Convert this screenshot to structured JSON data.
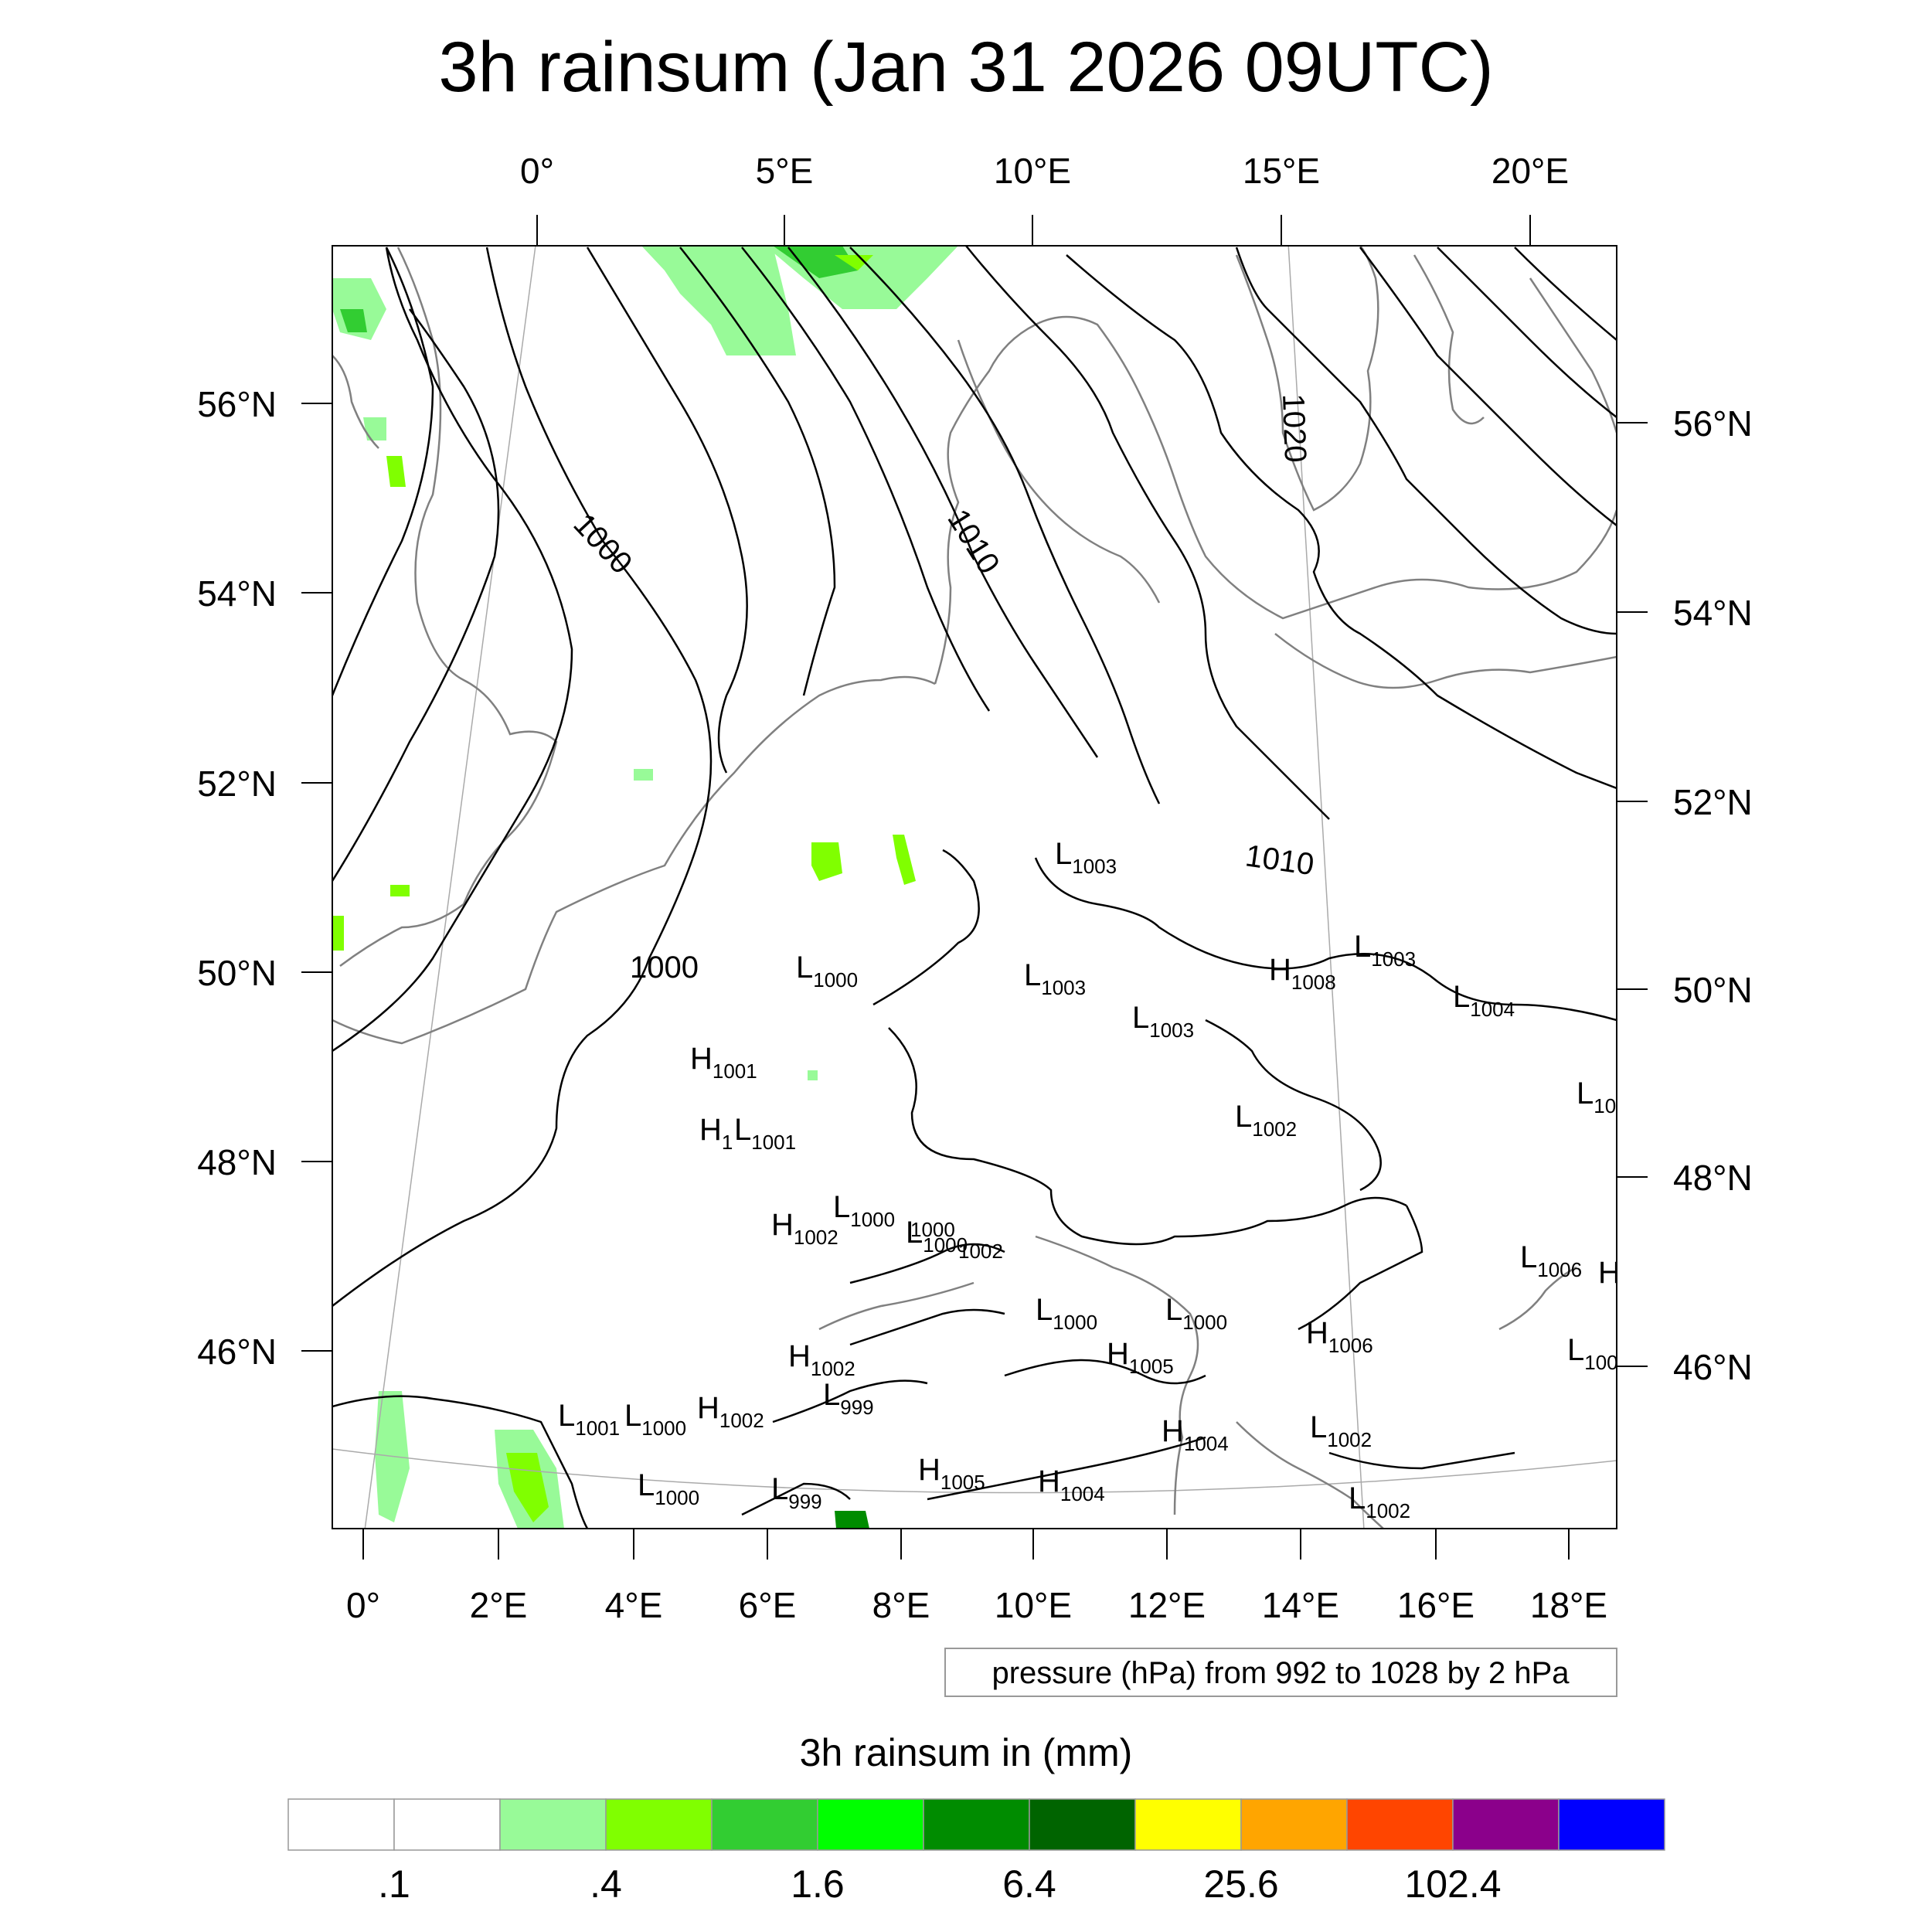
{
  "title": "3h rainsum (Jan 31 2026 09UTC)",
  "top_lon_labels": [
    "0°",
    "5°E",
    "10°E",
    "15°E",
    "20°E"
  ],
  "bottom_lon_labels": [
    "0°",
    "2°E",
    "4°E",
    "6°E",
    "8°E",
    "10°E",
    "12°E",
    "14°E",
    "16°E",
    "18°E"
  ],
  "left_lat_labels": [
    "56°N",
    "54°N",
    "52°N",
    "50°N",
    "48°N",
    "46°N"
  ],
  "right_lat_labels": [
    "56°N",
    "54°N",
    "52°N",
    "50°N",
    "48°N",
    "46°N"
  ],
  "isobar_labels": [
    "1000",
    "1010",
    "1020",
    "1010",
    "1000"
  ],
  "pressure_systems": [
    {
      "type": "L",
      "value": "1003"
    },
    {
      "type": "L",
      "value": "1000"
    },
    {
      "type": "L",
      "value": "1003"
    },
    {
      "type": "L",
      "value": "1003"
    },
    {
      "type": "H",
      "value": "1008"
    },
    {
      "type": "L",
      "value": "1003"
    },
    {
      "type": "L",
      "value": "1004"
    },
    {
      "type": "H",
      "value": "1001"
    },
    {
      "type": "H",
      "value": "1"
    },
    {
      "type": "L",
      "value": "1001"
    },
    {
      "type": "L",
      "value": "1002"
    },
    {
      "type": "L",
      "value": "10"
    },
    {
      "type": "H",
      "value": "1002"
    },
    {
      "type": "L",
      "value": "1000"
    },
    {
      "type": "L",
      "value": "1000"
    },
    {
      "type": "L",
      "value": "1006"
    },
    {
      "type": "H",
      "value": ""
    },
    {
      "type": "L",
      "value": "1000"
    },
    {
      "type": "L",
      "value": "1000"
    },
    {
      "type": "H",
      "value": "1002"
    },
    {
      "type": "H",
      "value": "1005"
    },
    {
      "type": "H",
      "value": "1006"
    },
    {
      "type": "L",
      "value": "100"
    },
    {
      "type": "L",
      "value": "999"
    },
    {
      "type": "L",
      "value": "1001"
    },
    {
      "type": "L",
      "value": "1000"
    },
    {
      "type": "H",
      "value": "1002"
    },
    {
      "type": "H",
      "value": "1004"
    },
    {
      "type": "L",
      "value": "1002"
    },
    {
      "type": "L",
      "value": "1000"
    },
    {
      "type": "L",
      "value": "999"
    },
    {
      "type": "H",
      "value": "1005"
    },
    {
      "type": "H",
      "value": "1004"
    },
    {
      "type": "L",
      "value": "1002"
    }
  ],
  "stray_label": "1002",
  "stray_label2": "1000",
  "pressure_note": "pressure (hPa) from 992 to 1028 by 2 hPa",
  "colorbar": {
    "title": "3h rainsum in (mm)",
    "colors": [
      "#ffffff",
      "#ffffff",
      "#98fa98",
      "#80ff00",
      "#32cd32",
      "#00ff00",
      "#008c00",
      "#006400",
      "#ffff00",
      "#ffa500",
      "#ff4500",
      "#8b008b",
      "#0000ff"
    ],
    "labels": [
      ".1",
      ".4",
      "1.6",
      "6.4",
      "25.6",
      "102.4"
    ]
  }
}
